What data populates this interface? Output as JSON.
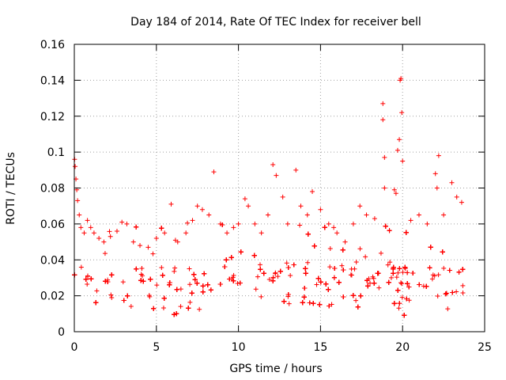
{
  "chart_data": {
    "type": "scatter",
    "title": "Day 184 of 2014, Rate Of TEC Index for receiver bell",
    "xlabel": "GPS time / hours",
    "ylabel": "ROTI / TECUs",
    "xlim": [
      0,
      25
    ],
    "ylim": [
      0,
      0.16
    ],
    "xticks": [
      0,
      5,
      10,
      15,
      20,
      25
    ],
    "xtick_labels": [
      "0",
      "5",
      "10",
      "15",
      "20",
      "25"
    ],
    "yticks": [
      0,
      0.02,
      0.04,
      0.06,
      0.08,
      0.1,
      0.12,
      0.14,
      0.16
    ],
    "ytick_labels": [
      "0",
      "0.02",
      "0.04",
      "0.06",
      "0.08",
      "0.1",
      "0.12",
      "0.14",
      "0.16"
    ],
    "grid": true,
    "marker": "+",
    "marker_color": "#ff0000",
    "data_range_hours": [
      0,
      23.75
    ],
    "series": [
      {
        "name": "ROTI",
        "points": [
          [
            0.02,
            0.096
          ],
          [
            0.05,
            0.092
          ],
          [
            0.1,
            0.085
          ],
          [
            0.15,
            0.079
          ],
          [
            0.2,
            0.073
          ],
          [
            0.3,
            0.065
          ],
          [
            0.4,
            0.058
          ],
          [
            0.6,
            0.055
          ],
          [
            0.8,
            0.062
          ],
          [
            1.0,
            0.058
          ],
          [
            1.2,
            0.055
          ],
          [
            1.5,
            0.052
          ],
          [
            1.8,
            0.05
          ],
          [
            2.2,
            0.053
          ],
          [
            2.6,
            0.056
          ],
          [
            2.9,
            0.061
          ],
          [
            3.2,
            0.06
          ],
          [
            3.6,
            0.05
          ],
          [
            4.0,
            0.048
          ],
          [
            4.5,
            0.047
          ],
          [
            5.0,
            0.052
          ],
          [
            5.5,
            0.055
          ],
          [
            5.9,
            0.071
          ],
          [
            6.3,
            0.05
          ],
          [
            6.8,
            0.055
          ],
          [
            7.2,
            0.062
          ],
          [
            7.5,
            0.07
          ],
          [
            7.8,
            0.068
          ],
          [
            8.2,
            0.065
          ],
          [
            8.5,
            0.089
          ],
          [
            8.9,
            0.06
          ],
          [
            9.3,
            0.055
          ],
          [
            9.7,
            0.058
          ],
          [
            10.0,
            0.06
          ],
          [
            10.4,
            0.074
          ],
          [
            10.6,
            0.07
          ],
          [
            11.0,
            0.06
          ],
          [
            11.4,
            0.055
          ],
          [
            11.8,
            0.065
          ],
          [
            12.1,
            0.093
          ],
          [
            12.3,
            0.087
          ],
          [
            12.7,
            0.075
          ],
          [
            13.0,
            0.06
          ],
          [
            13.5,
            0.09
          ],
          [
            13.8,
            0.07
          ],
          [
            14.2,
            0.065
          ],
          [
            14.5,
            0.078
          ],
          [
            15.0,
            0.068
          ],
          [
            15.5,
            0.06
          ],
          [
            16.0,
            0.055
          ],
          [
            16.5,
            0.05
          ],
          [
            17.0,
            0.06
          ],
          [
            17.4,
            0.07
          ],
          [
            17.8,
            0.065
          ],
          [
            18.3,
            0.063
          ],
          [
            18.8,
            0.127
          ],
          [
            18.8,
            0.118
          ],
          [
            18.9,
            0.097
          ],
          [
            18.9,
            0.08
          ],
          [
            19.5,
            0.079
          ],
          [
            19.6,
            0.077
          ],
          [
            19.7,
            0.101
          ],
          [
            19.8,
            0.107
          ],
          [
            19.85,
            0.14
          ],
          [
            19.9,
            0.141
          ],
          [
            19.95,
            0.122
          ],
          [
            20.0,
            0.095
          ],
          [
            20.5,
            0.062
          ],
          [
            21.0,
            0.065
          ],
          [
            21.5,
            0.06
          ],
          [
            22.0,
            0.088
          ],
          [
            22.1,
            0.08
          ],
          [
            22.2,
            0.098
          ],
          [
            22.5,
            0.065
          ],
          [
            23.0,
            0.083
          ],
          [
            23.3,
            0.075
          ],
          [
            23.6,
            0.072
          ]
        ]
      }
    ]
  }
}
